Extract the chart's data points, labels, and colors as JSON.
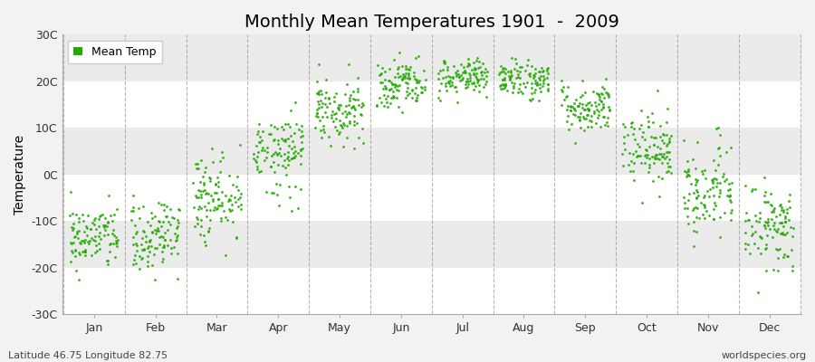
{
  "title": "Monthly Mean Temperatures 1901  -  2009",
  "ylabel": "Temperature",
  "footer_left": "Latitude 46.75 Longitude 82.75",
  "footer_right": "worldspecies.org",
  "legend_label": "Mean Temp",
  "dot_color": "#22AA00",
  "bg_color": "#F2F2F2",
  "band_colors": [
    "#FFFFFF",
    "#EBEBEB"
  ],
  "ylim": [
    -30,
    30
  ],
  "yticks": [
    -30,
    -20,
    -10,
    0,
    10,
    20,
    30
  ],
  "ytick_labels": [
    "-30C",
    "-20C",
    "-10C",
    "0C",
    "10C",
    "20C",
    "30C"
  ],
  "months": [
    "Jan",
    "Feb",
    "Mar",
    "Apr",
    "May",
    "Jun",
    "Jul",
    "Aug",
    "Sep",
    "Oct",
    "Nov",
    "Dec"
  ],
  "monthly_means": [
    -13.5,
    -13.0,
    -5.5,
    4.5,
    13.5,
    19.5,
    21.0,
    20.5,
    14.5,
    5.5,
    -3.5,
    -11.0
  ],
  "monthly_stds": [
    3.5,
    3.8,
    4.5,
    4.5,
    3.5,
    2.5,
    1.8,
    1.8,
    2.8,
    3.5,
    4.5,
    4.8
  ],
  "n_years": 109,
  "dot_size": 4,
  "dot_marker": "o",
  "grid_color": "#888888",
  "spine_color": "#AAAAAA",
  "tick_label_color": "#333333",
  "title_fontsize": 14,
  "axis_fontsize": 9,
  "ylabel_fontsize": 10,
  "footer_fontsize": 8
}
